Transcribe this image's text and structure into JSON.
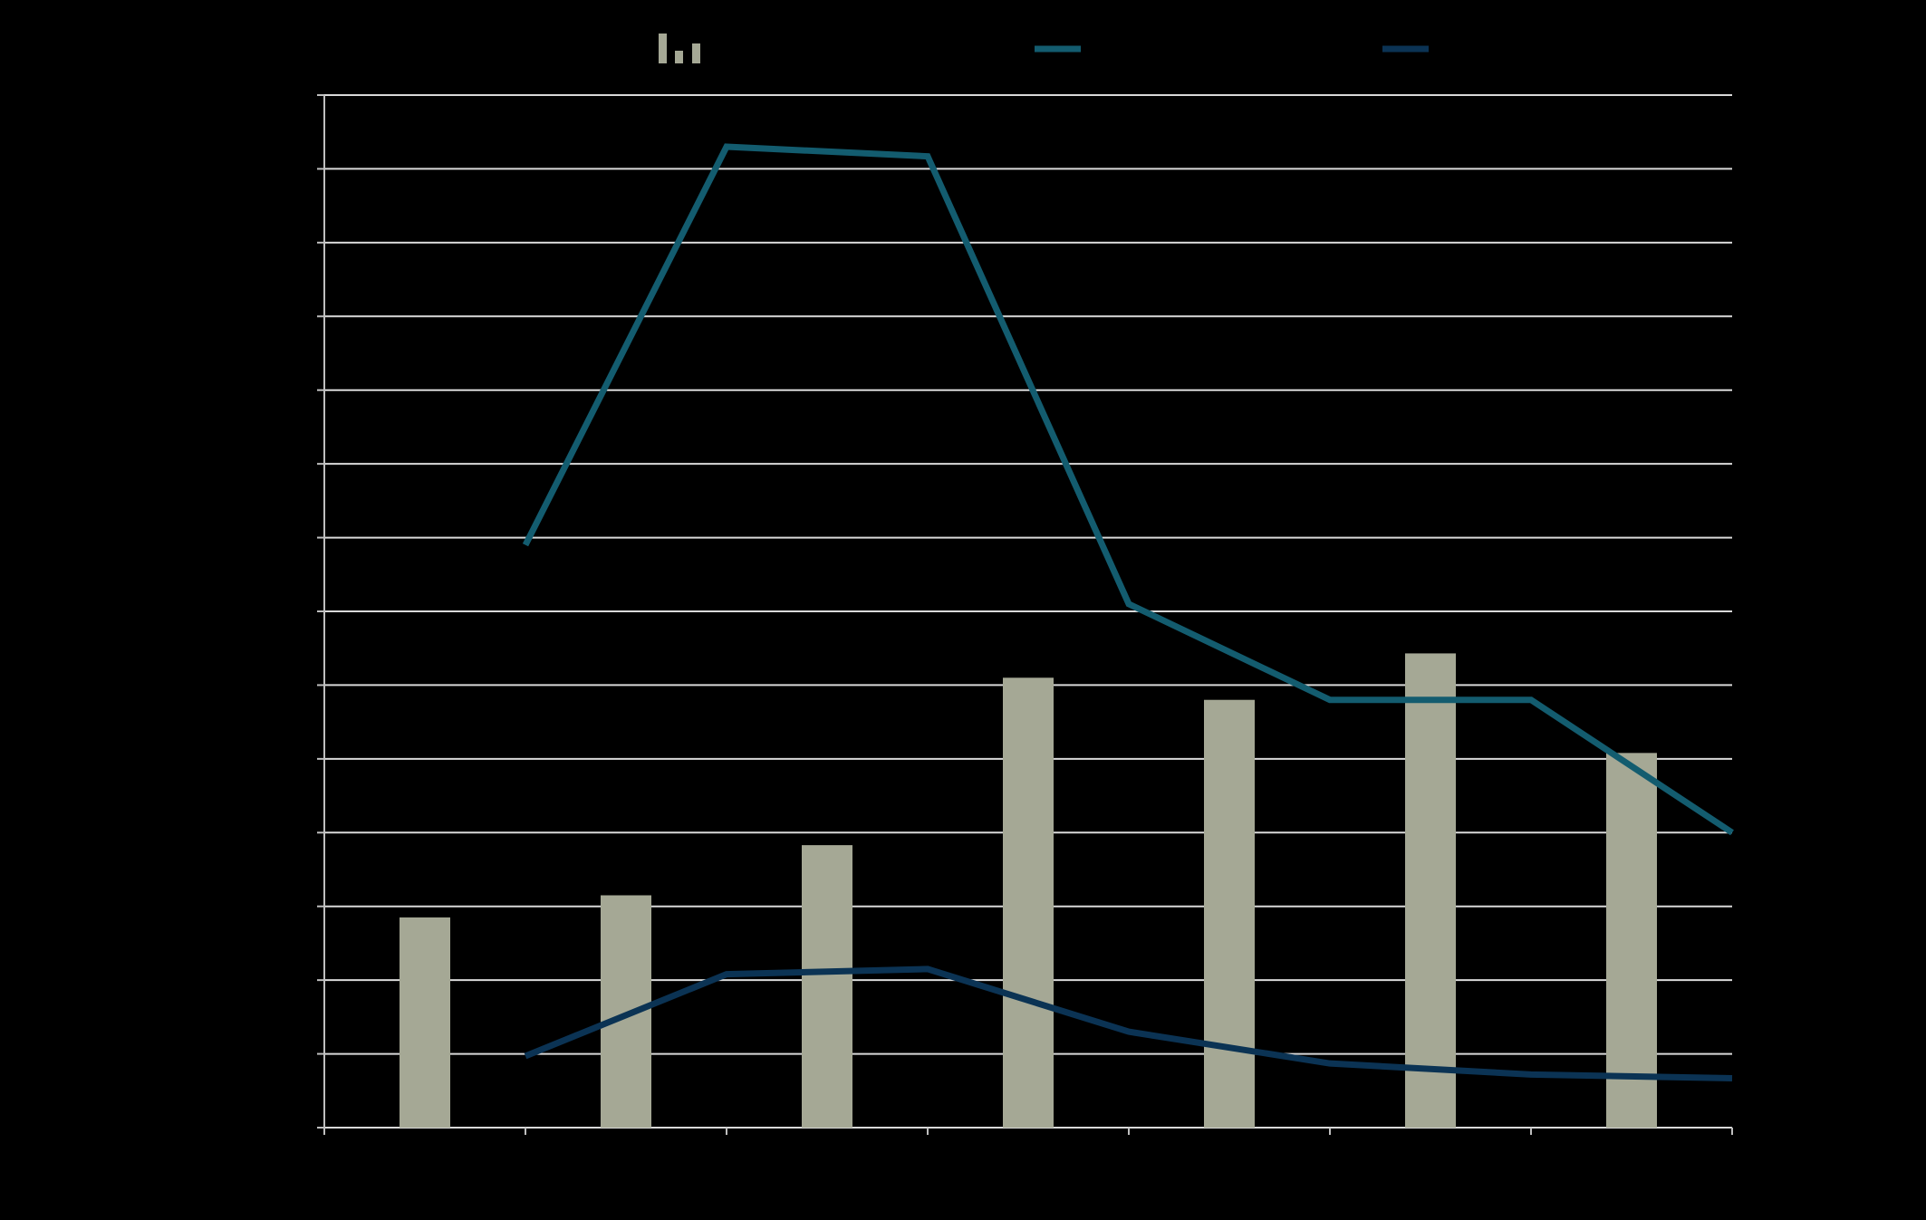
{
  "colors": {
    "background": "#000000",
    "grid": "#d9d9d9",
    "axis": "#bfbfbf",
    "bar": "#a5a895",
    "series_line_1": "#135c6f",
    "series_line_2": "#0b3354"
  },
  "legend": {
    "bar_swatch_icon": "bar-chart-icon",
    "line_1_swatch_icon": "line-swatch-icon",
    "line_2_swatch_icon": "line-swatch-icon"
  },
  "chart_data": {
    "type": "bar",
    "title": "",
    "xlabel": "",
    "ylabel": "",
    "ylim": [
      0,
      14
    ],
    "grid": true,
    "legend_placement": "top",
    "bar_positions": [
      1,
      3,
      5,
      7,
      9,
      11,
      13
    ],
    "line_positions": [
      2,
      4,
      6,
      8,
      10,
      12,
      14
    ],
    "series": [
      {
        "kind": "bar",
        "values": [
          2.85,
          3.15,
          3.83,
          6.1,
          5.8,
          6.43,
          5.08
        ]
      },
      {
        "kind": "line",
        "values": [
          7.9,
          13.3,
          13.17,
          7.1,
          5.8,
          5.8,
          4.0
        ]
      },
      {
        "kind": "line",
        "values": [
          0.97,
          2.08,
          2.15,
          1.3,
          0.87,
          0.72,
          0.67
        ]
      }
    ]
  }
}
